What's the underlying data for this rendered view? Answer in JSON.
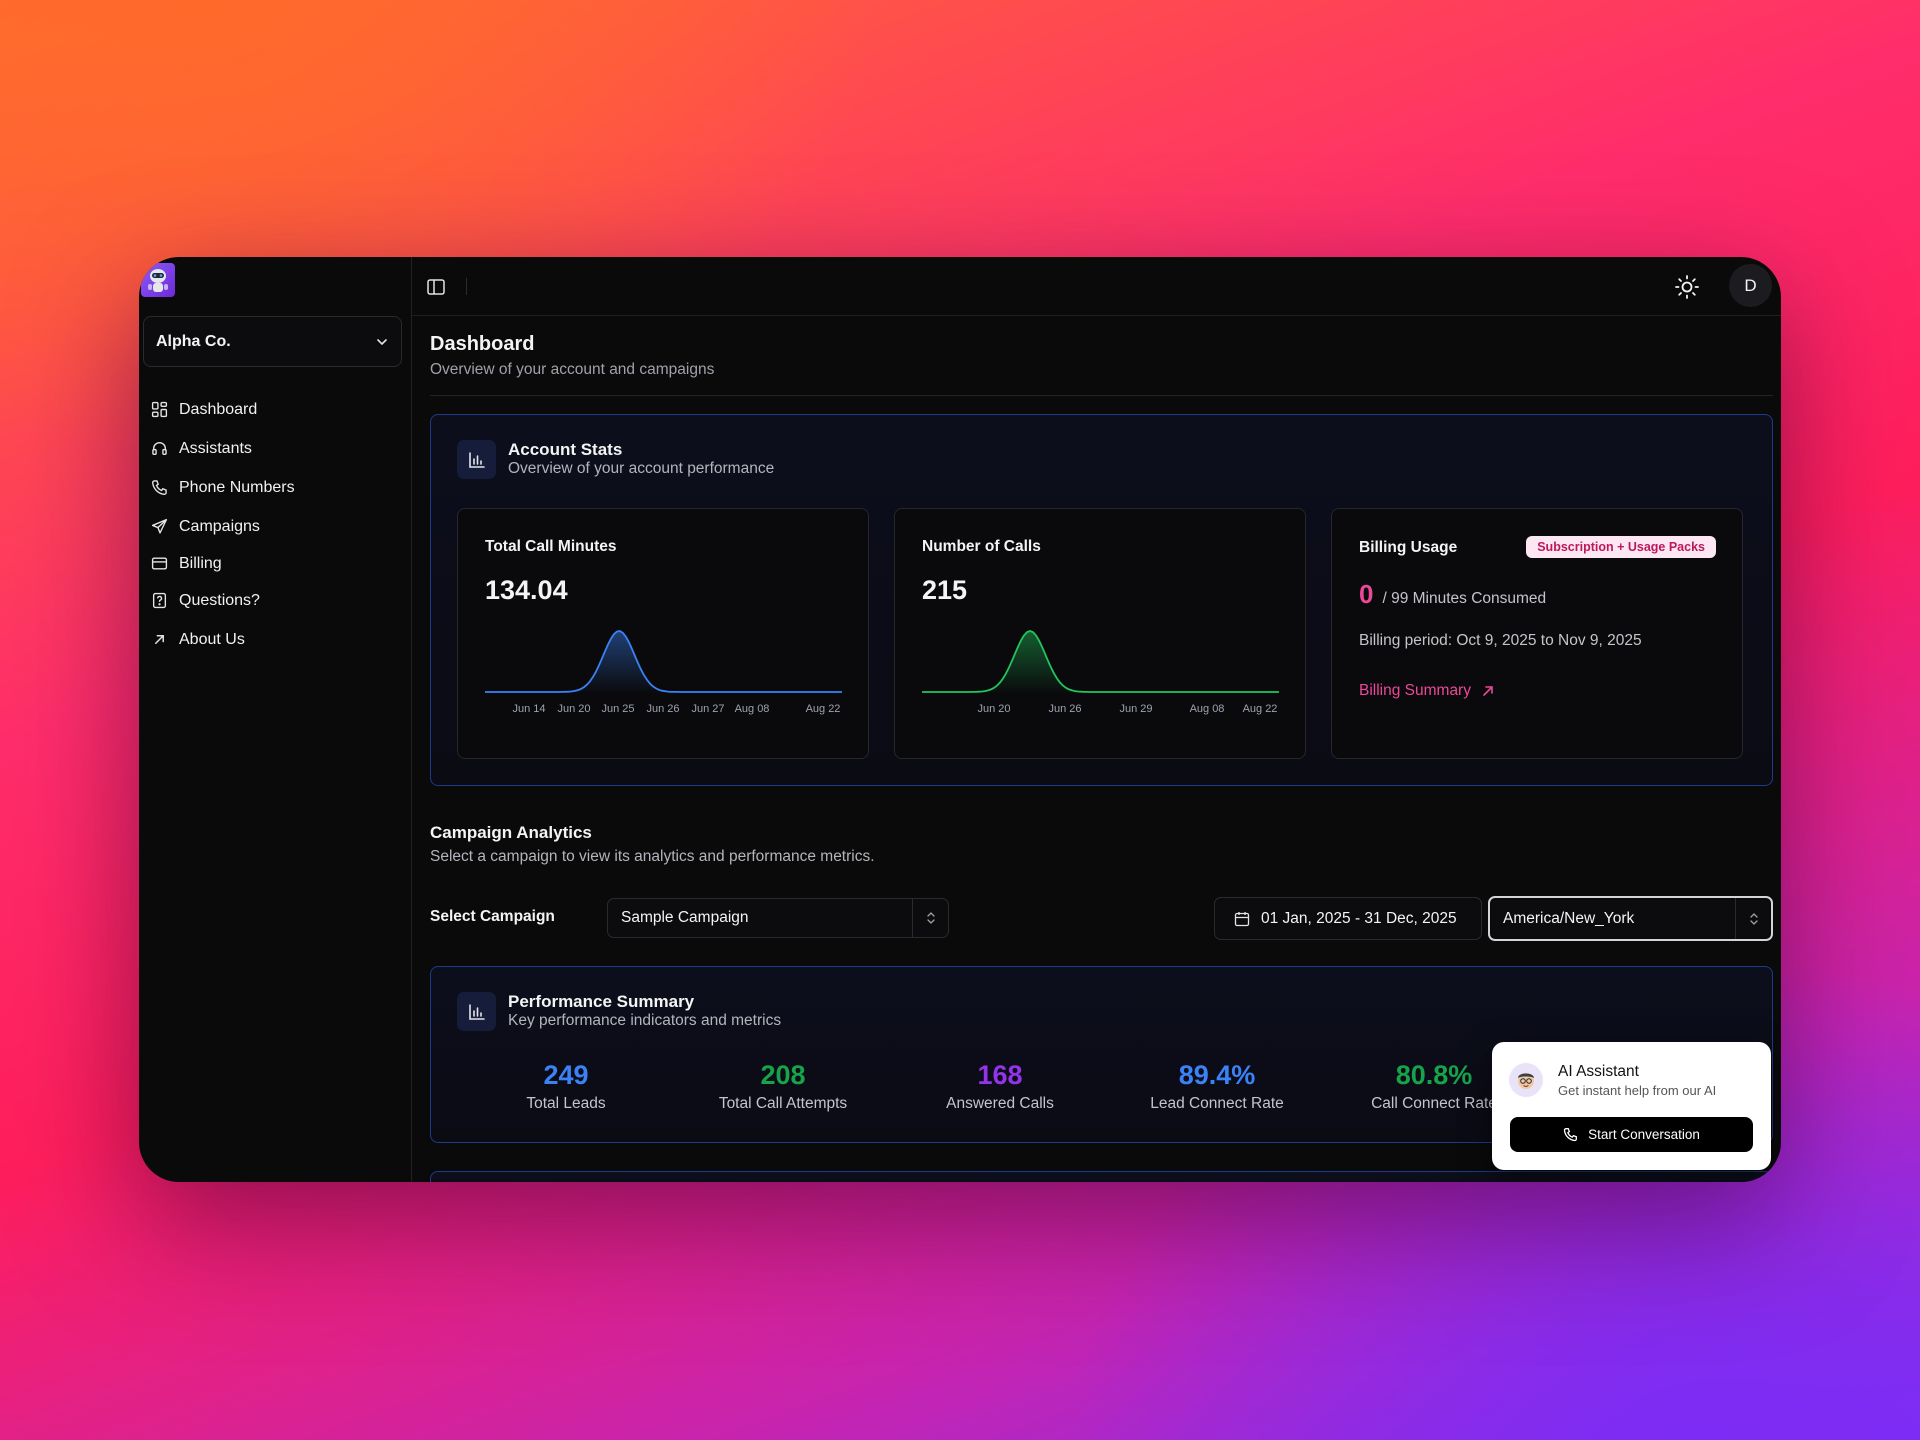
{
  "sidebar": {
    "org": "Alpha Co.",
    "items": [
      {
        "label": "Dashboard",
        "icon": "dashboard-grid-icon"
      },
      {
        "label": "Assistants",
        "icon": "headset-icon"
      },
      {
        "label": "Phone Numbers",
        "icon": "phone-icon"
      },
      {
        "label": "Campaigns",
        "icon": "send-icon"
      },
      {
        "label": "Billing",
        "icon": "credit-card-icon"
      },
      {
        "label": "Questions?",
        "icon": "help-file-icon"
      },
      {
        "label": "About Us",
        "icon": "arrow-up-right-icon"
      }
    ]
  },
  "topbar": {
    "avatar_initial": "D"
  },
  "page": {
    "title": "Dashboard",
    "subtitle": "Overview of your account and campaigns"
  },
  "account_stats": {
    "title": "Account Stats",
    "subtitle": "Overview of your account performance",
    "call_minutes": {
      "label": "Total Call Minutes",
      "value": "134.04",
      "color": "#3b82f6",
      "ticks": [
        "Jun 14",
        "Jun 20",
        "Jun 25",
        "Jun 26",
        "Jun 27",
        "Aug 08",
        "Aug 22"
      ]
    },
    "num_calls": {
      "label": "Number of Calls",
      "value": "215",
      "color": "#22c55e",
      "ticks": [
        "Jun 20",
        "Jun 26",
        "Jun 29",
        "Aug 08",
        "Aug 22"
      ]
    },
    "billing": {
      "label": "Billing Usage",
      "badge": "Subscription + Usage Packs",
      "consumed": "0",
      "consumed_text": "/ 99 Minutes Consumed",
      "period": "Billing period: Oct 9, 2025 to Nov 9, 2025",
      "link": "Billing Summary"
    }
  },
  "campaign_analytics": {
    "title": "Campaign Analytics",
    "subtitle": "Select a campaign to view its analytics and performance metrics.",
    "select_label": "Select Campaign",
    "selected_campaign": "Sample Campaign",
    "date_range": "01 Jan, 2025 - 31 Dec, 2025",
    "timezone": "America/New_York"
  },
  "performance": {
    "title": "Performance Summary",
    "subtitle": "Key performance indicators and metrics",
    "metrics": [
      {
        "value": "249",
        "label": "Total Leads",
        "color": "#3b82f6"
      },
      {
        "value": "208",
        "label": "Total Call Attempts",
        "color": "#16a34a"
      },
      {
        "value": "168",
        "label": "Answered Calls",
        "color": "#9333ea"
      },
      {
        "value": "89.4%",
        "label": "Lead Connect Rate",
        "color": "#3b82f6"
      },
      {
        "value": "80.8%",
        "label": "Call Connect Rate",
        "color": "#16a34a"
      }
    ]
  },
  "ai_assistant": {
    "title": "AI Assistant",
    "subtitle": "Get instant help from our AI",
    "button": "Start Conversation"
  }
}
